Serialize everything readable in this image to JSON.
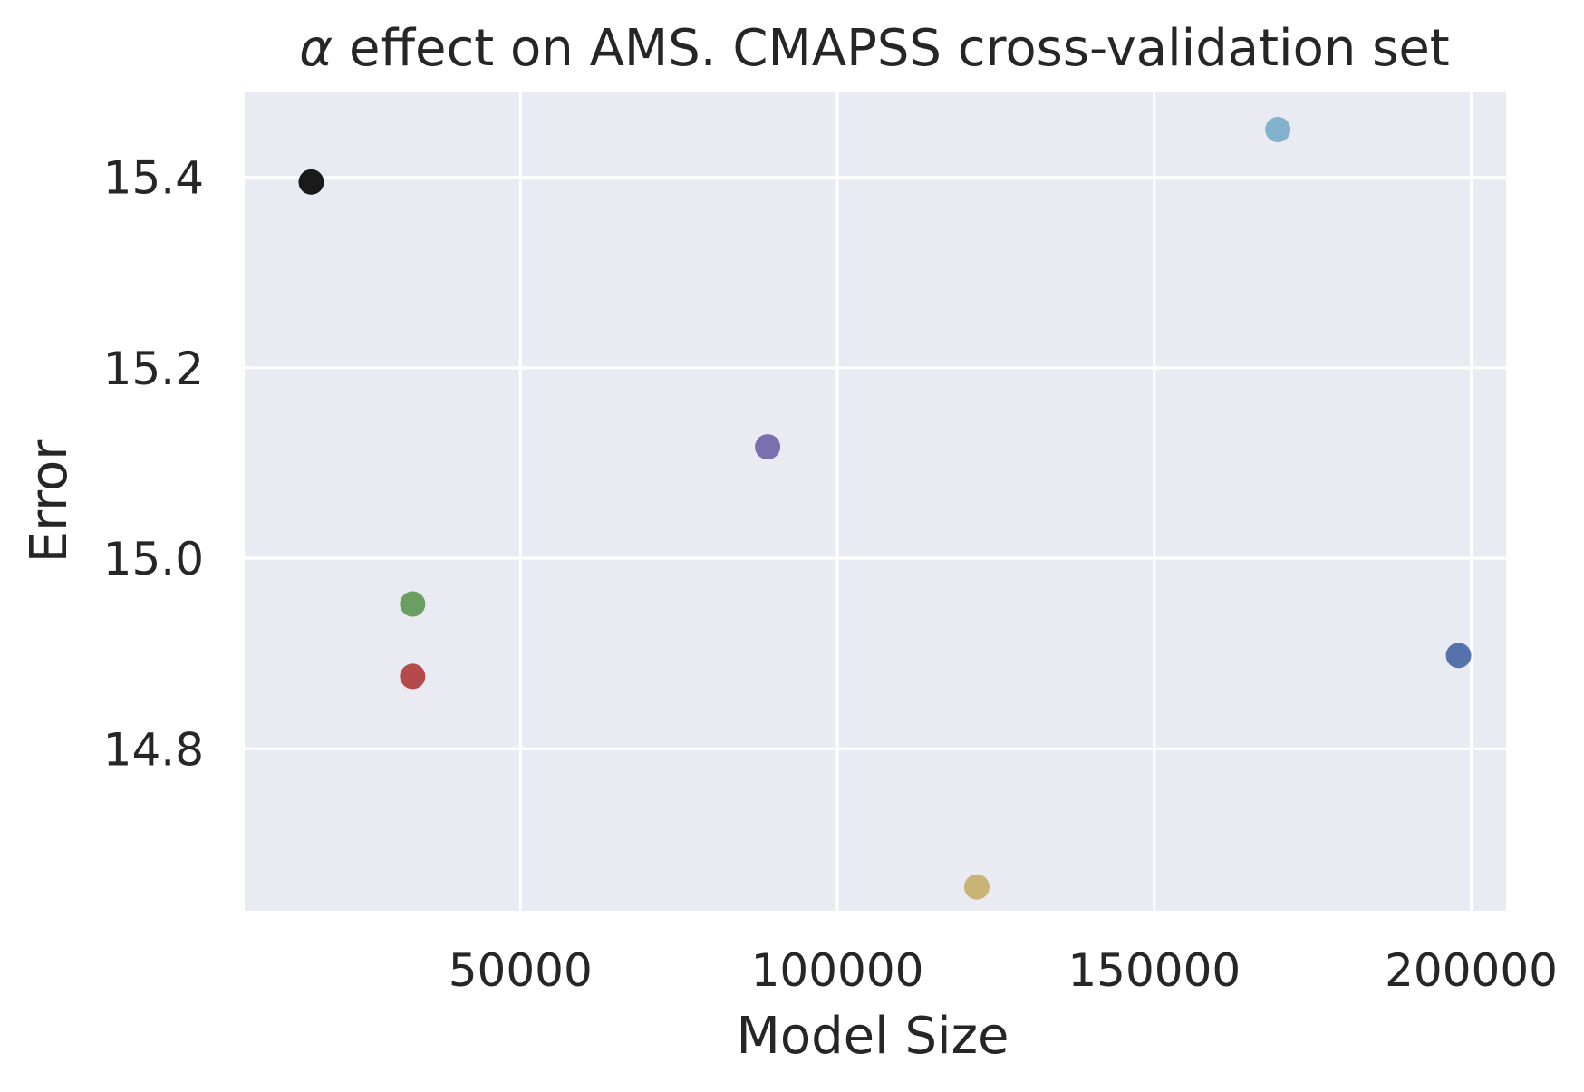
{
  "chart_data": {
    "type": "scatter",
    "title_symbol": "α",
    "title_text": " effect on AMS. CMAPSS cross-validation set",
    "xlabel": "Model Size",
    "ylabel": "Error",
    "xlim": [
      6500,
      205500
    ],
    "ylim": [
      14.63,
      15.49
    ],
    "x_ticks": [
      50000,
      100000,
      150000,
      200000
    ],
    "x_tick_labels": [
      "50000",
      "100000",
      "150000",
      "200000"
    ],
    "y_ticks": [
      14.8,
      15.0,
      15.2,
      15.4
    ],
    "y_tick_labels": [
      "14.8",
      "15.0",
      "15.2",
      "15.4"
    ],
    "grid": true,
    "background_color": "#eaeaf2",
    "grid_color": "#ffffff",
    "points": [
      {
        "x": 17000,
        "y": 15.395,
        "color": "#1a1a1a"
      },
      {
        "x": 33000,
        "y": 14.952,
        "color": "#6b9f62"
      },
      {
        "x": 33000,
        "y": 14.876,
        "color": "#b44a4a"
      },
      {
        "x": 89000,
        "y": 15.117,
        "color": "#7b6fae"
      },
      {
        "x": 122000,
        "y": 14.655,
        "color": "#c8b477"
      },
      {
        "x": 169500,
        "y": 15.45,
        "color": "#82b2ce"
      },
      {
        "x": 198000,
        "y": 14.898,
        "color": "#5572ad"
      }
    ]
  }
}
